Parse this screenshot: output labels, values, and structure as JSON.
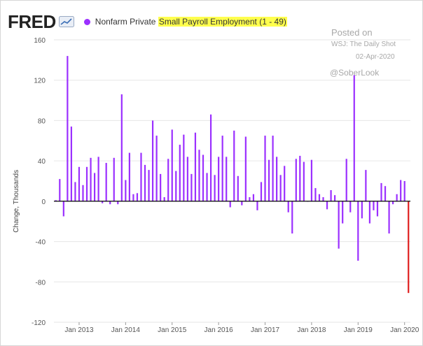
{
  "header": {
    "logo": "FRED",
    "legend_prefix": "Nonfarm Private ",
    "legend_highlight": "Small Payroll Employment (1 - 49)"
  },
  "annotations": {
    "posted_on": "Posted on",
    "source": "WSJ: The Daily Shot",
    "posted_date": "02-Apr-2020",
    "handle": "@SoberLook"
  },
  "colors": {
    "bar": "#9b30ff",
    "last_bar": "#e02020",
    "highlight": "#ffff4d"
  },
  "chart_data": {
    "type": "bar",
    "title": "",
    "xlabel": "",
    "ylabel": "Change, Thousands",
    "ylim": [
      -120,
      160
    ],
    "yticks": [
      -120,
      -80,
      -40,
      0,
      40,
      80,
      120,
      160
    ],
    "x_tick_labels": [
      "Jan 2013",
      "Jan 2014",
      "Jan 2015",
      "Jan 2016",
      "Jan 2017",
      "Jan 2018",
      "Jan 2019",
      "Jan 2020"
    ],
    "x_start": "2012-07",
    "x_end": "2020-03",
    "grid": "horizontal",
    "series": [
      {
        "name": "Nonfarm Private Small Payroll Employment (1 - 49)",
        "values": [
          1,
          22,
          -15,
          144,
          74,
          19,
          34,
          16,
          34,
          43,
          28,
          44,
          -2,
          38,
          -3,
          43,
          -3,
          106,
          21,
          48,
          7,
          8,
          48,
          36,
          31,
          80,
          65,
          27,
          4,
          42,
          71,
          30,
          56,
          66,
          44,
          27,
          68,
          51,
          46,
          28,
          86,
          26,
          44,
          65,
          44,
          -6,
          70,
          25,
          -4,
          64,
          4,
          7,
          -9,
          19,
          65,
          41,
          65,
          44,
          26,
          35,
          -11,
          -32,
          42,
          45,
          39,
          0,
          41,
          13,
          7,
          4,
          -8,
          11,
          6,
          -47,
          -22,
          42,
          -11,
          125,
          -59,
          -17,
          31,
          -22,
          -9,
          -15,
          18,
          15,
          -32,
          -3,
          7,
          21,
          20,
          -91
        ]
      }
    ]
  }
}
